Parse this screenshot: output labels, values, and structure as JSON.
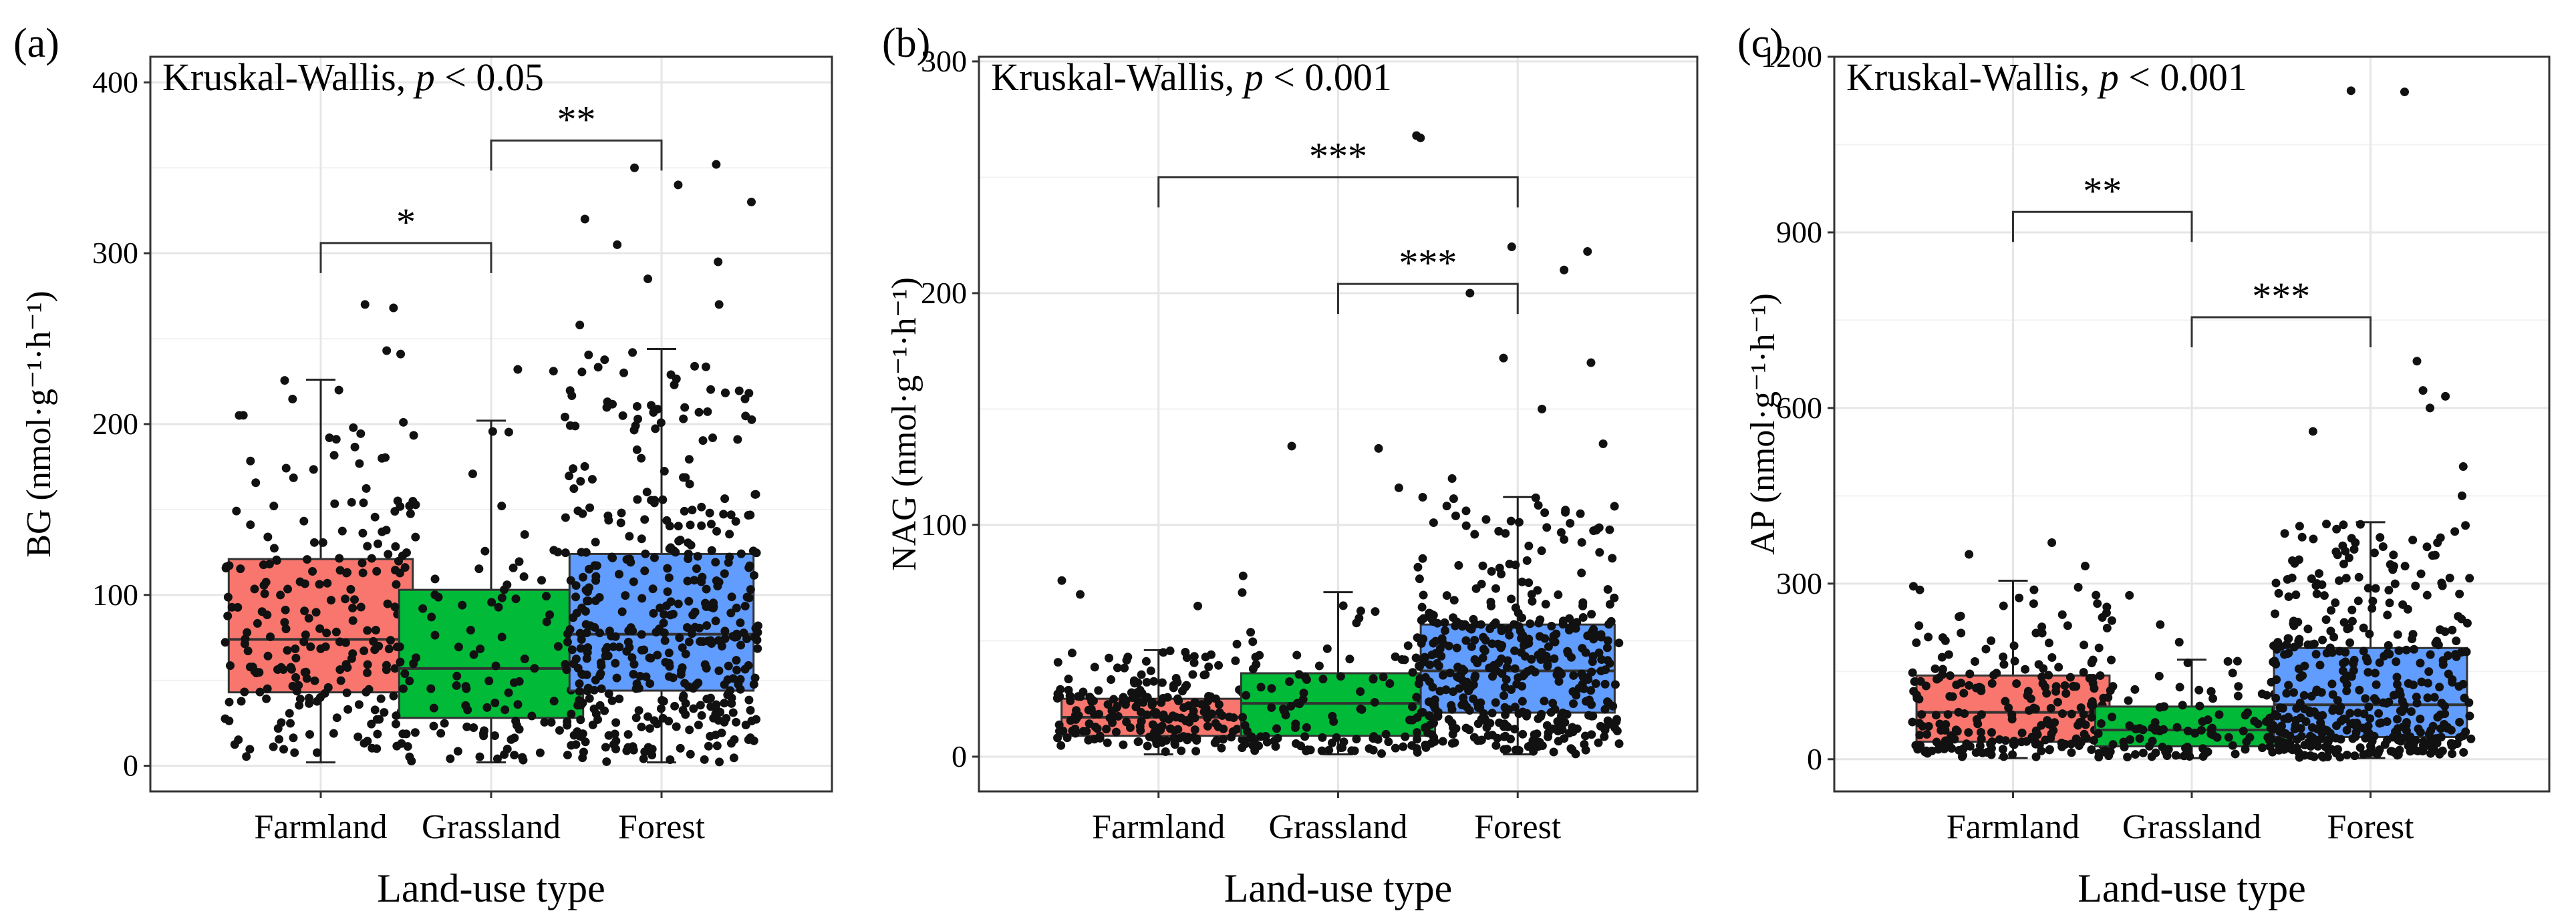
{
  "chart_data": [
    {
      "panel_label": "(a)",
      "type": "boxplot",
      "annotation": {
        "test": "Kruskal-Wallis, ",
        "p_symbol": "p",
        "p_text": " < 0.05"
      },
      "ylabel": "BG (nmol·g⁻¹·h⁻¹)",
      "xlabel": "Land-use type",
      "categories": [
        "Farmland",
        "Grassland",
        "Forest"
      ],
      "colors": [
        "#F8766D",
        "#00BA38",
        "#619CFF"
      ],
      "ylim": [
        -15,
        415
      ],
      "yticks": [
        0,
        100,
        200,
        300,
        400
      ],
      "boxes": [
        {
          "name": "Farmland",
          "min": 2,
          "q1": 43,
          "median": 74,
          "q3": 121,
          "max": 226,
          "n": 230,
          "outliers": [
            241,
            243,
            268,
            270
          ]
        },
        {
          "name": "Grassland",
          "min": 2,
          "q1": 28,
          "median": 57,
          "q3": 103,
          "max": 202,
          "n": 110,
          "outliers": [
            232,
            231
          ]
        },
        {
          "name": "Forest",
          "min": 2,
          "q1": 44,
          "median": 77,
          "q3": 124,
          "max": 244,
          "n": 430,
          "outliers": [
            258,
            270,
            285,
            295,
            305,
            320,
            330,
            340,
            350,
            352
          ]
        }
      ],
      "significance": [
        {
          "from": 0,
          "to": 1,
          "y": 306,
          "label": "*"
        },
        {
          "from": 1,
          "to": 2,
          "y": 366,
          "label": "**"
        }
      ]
    },
    {
      "panel_label": "(b)",
      "type": "boxplot",
      "annotation": {
        "test": "Kruskal-Wallis, ",
        "p_symbol": "p",
        "p_text": " < 0.001"
      },
      "ylabel": "NAG (nmol·g⁻¹·h⁻¹)",
      "xlabel": "Land-use type",
      "categories": [
        "Farmland",
        "Grassland",
        "Forest"
      ],
      "colors": [
        "#F8766D",
        "#00BA38",
        "#619CFF"
      ],
      "ylim": [
        -15,
        302
      ],
      "yticks": [
        0,
        100,
        200,
        300
      ],
      "boxes": [
        {
          "name": "Farmland",
          "min": 1,
          "q1": 9,
          "median": 17,
          "q3": 25,
          "max": 46,
          "n": 230,
          "outliers": [
            65,
            70,
            76,
            78
          ]
        },
        {
          "name": "Grassland",
          "min": 1,
          "q1": 9,
          "median": 23,
          "q3": 36,
          "max": 71,
          "n": 110,
          "outliers": [
            116,
            133,
            134
          ]
        },
        {
          "name": "Forest",
          "min": 1,
          "q1": 19,
          "median": 37,
          "q3": 57,
          "max": 112,
          "n": 430,
          "outliers": [
            120,
            135,
            150,
            170,
            172,
            200,
            210,
            218,
            220,
            267,
            268
          ]
        }
      ],
      "significance": [
        {
          "from": 0,
          "to": 2,
          "y": 250,
          "label": "***"
        },
        {
          "from": 1,
          "to": 2,
          "y": 204,
          "label": "***"
        }
      ]
    },
    {
      "panel_label": "(c)",
      "type": "boxplot",
      "annotation": {
        "test": "Kruskal-Wallis, ",
        "p_symbol": "p",
        "p_text": " < 0.001"
      },
      "ylabel": "AP (nmol·g⁻¹·h⁻¹)",
      "xlabel": "Land-use type",
      "categories": [
        "Farmland",
        "Grassland",
        "Forest"
      ],
      "colors": [
        "#F8766D",
        "#00BA38",
        "#619CFF"
      ],
      "ylim": [
        -55,
        1200
      ],
      "yticks": [
        0,
        300,
        600,
        900,
        1200
      ],
      "boxes": [
        {
          "name": "Farmland",
          "min": 2,
          "q1": 30,
          "median": 80,
          "q3": 143,
          "max": 305,
          "n": 230,
          "outliers": [
            330,
            350,
            370
          ]
        },
        {
          "name": "Grassland",
          "min": 2,
          "q1": 22,
          "median": 50,
          "q3": 90,
          "max": 170,
          "n": 110,
          "outliers": [
            200,
            230,
            260,
            280
          ]
        },
        {
          "name": "Forest",
          "min": 2,
          "q1": 38,
          "median": 93,
          "q3": 190,
          "max": 405,
          "n": 430,
          "outliers": [
            450,
            500,
            560,
            600,
            620,
            630,
            680,
            1140,
            1142
          ]
        }
      ],
      "significance": [
        {
          "from": 0,
          "to": 1,
          "y": 935,
          "label": "**"
        },
        {
          "from": 1,
          "to": 2,
          "y": 755,
          "label": "***"
        }
      ]
    }
  ]
}
